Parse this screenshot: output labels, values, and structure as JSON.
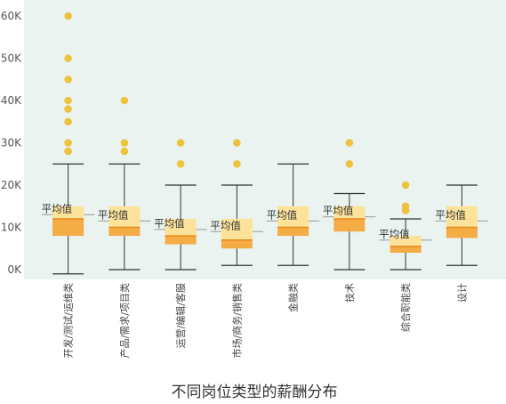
{
  "chart_data": {
    "type": "boxplot",
    "title": "不同岗位类型的薪酬分布",
    "xlabel": "",
    "ylabel": "",
    "ylim": [
      -1500,
      63000
    ],
    "yticks": [
      0,
      10000,
      20000,
      30000,
      40000,
      50000,
      60000
    ],
    "ytick_labels": [
      "0K",
      "10K",
      "20K",
      "30K",
      "40K",
      "50K",
      "60K"
    ],
    "grid": false,
    "mean_label": "平均值",
    "colors": {
      "plot_bg": "#eaf3f0",
      "box_upper": "#fde29a",
      "box_lower": "#f4ac45",
      "median": "#e68a1c",
      "outlier": "#edc33d",
      "whisker": "#333333",
      "mean_line": "#aaaaaa"
    },
    "categories": [
      "开发/测试/运维类",
      "产品/需求/项目类",
      "运营/编辑/客服",
      "市场/商务/销售类",
      "金融类",
      "技术",
      "综合职能类",
      "设计"
    ],
    "boxes": [
      {
        "min": -1000,
        "q1": 8000,
        "median": 12000,
        "q3": 15000,
        "max": 25000,
        "mean": 13000,
        "outliers": [
          28000,
          30000,
          35000,
          38000,
          40000,
          45000,
          50000,
          60000
        ]
      },
      {
        "min": 0,
        "q1": 8000,
        "median": 10000,
        "q3": 15000,
        "max": 25000,
        "mean": 11500,
        "outliers": [
          28000,
          30000,
          40000
        ]
      },
      {
        "min": 0,
        "q1": 6000,
        "median": 8000,
        "q3": 12000,
        "max": 20000,
        "mean": 9500,
        "outliers": [
          25000,
          30000
        ]
      },
      {
        "min": 1000,
        "q1": 5000,
        "median": 7000,
        "q3": 12000,
        "max": 20000,
        "mean": 9000,
        "outliers": [
          25000,
          30000
        ]
      },
      {
        "min": 1000,
        "q1": 8000,
        "median": 10000,
        "q3": 15000,
        "max": 25000,
        "mean": 11500,
        "outliers": []
      },
      {
        "min": 0,
        "q1": 9000,
        "median": 12000,
        "q3": 15000,
        "max": 18000,
        "mean": 12500,
        "outliers": [
          25000,
          30000
        ]
      },
      {
        "min": 0,
        "q1": 4000,
        "median": 5500,
        "q3": 8000,
        "max": 12000,
        "mean": 7000,
        "outliers": [
          14000,
          15000,
          20000
        ]
      },
      {
        "min": 1000,
        "q1": 7500,
        "median": 10000,
        "q3": 15000,
        "max": 20000,
        "mean": 11500,
        "outliers": []
      }
    ]
  }
}
